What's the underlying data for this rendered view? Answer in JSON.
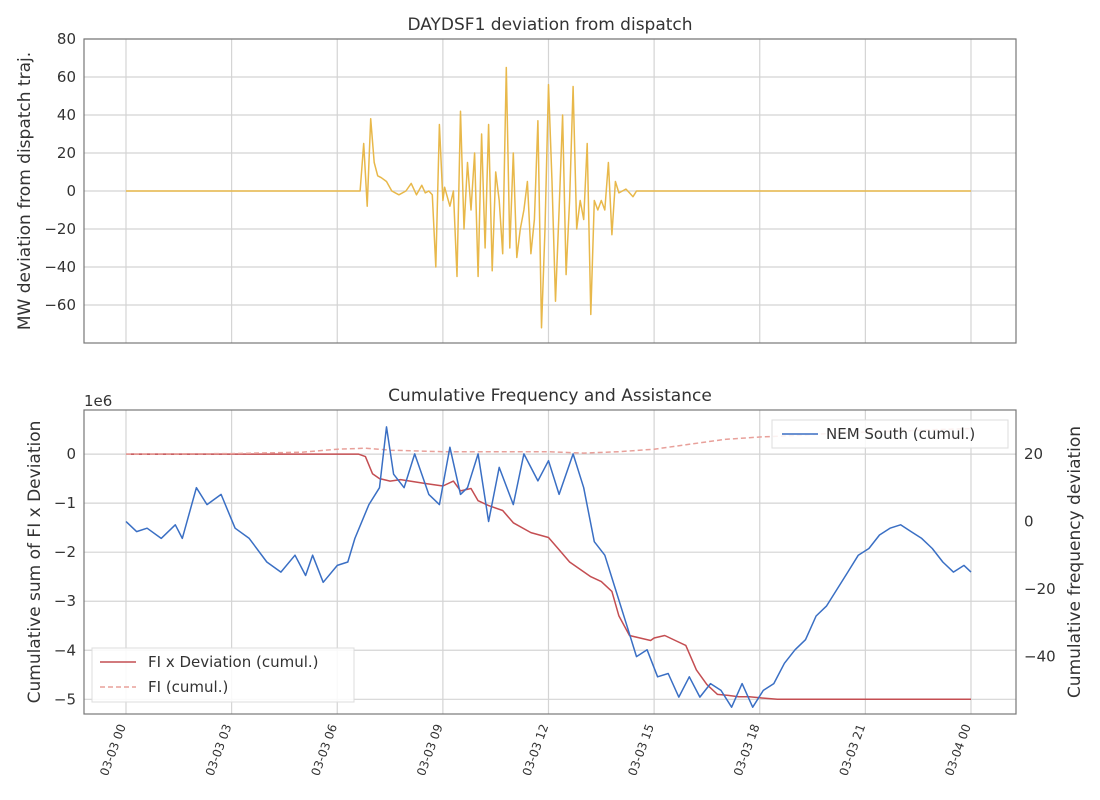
{
  "chart_data": [
    {
      "type": "line",
      "title": "DAYDSF1 deviation from dispatch",
      "ylabel": "MW deviation from dispatch traj.",
      "xlabel": "",
      "x_range_hours": [
        0,
        24
      ],
      "ylim": [
        -80,
        80
      ],
      "yticks": [
        80,
        60,
        40,
        20,
        0,
        -20,
        -40,
        -60
      ],
      "ytick_labels": [
        "80",
        "60",
        "40",
        "20",
        "0",
        "−20",
        "−40",
        "−60"
      ],
      "grid": true,
      "series": [
        {
          "color": "#e8b84a",
          "x": [
            0,
            6.65,
            6.75,
            6.85,
            6.95,
            7.05,
            7.15,
            7.25,
            7.4,
            7.55,
            7.75,
            7.95,
            8.1,
            8.25,
            8.4,
            8.5,
            8.6,
            8.7,
            8.8,
            8.9,
            9.0,
            9.05,
            9.2,
            9.3,
            9.4,
            9.5,
            9.6,
            9.7,
            9.8,
            9.9,
            10.0,
            10.1,
            10.2,
            10.3,
            10.4,
            10.5,
            10.6,
            10.7,
            10.8,
            10.9,
            11.0,
            11.1,
            11.2,
            11.3,
            11.4,
            11.5,
            11.6,
            11.7,
            11.8,
            11.9,
            12.0,
            12.1,
            12.2,
            12.3,
            12.4,
            12.5,
            12.6,
            12.7,
            12.8,
            12.9,
            13.0,
            13.1,
            13.2,
            13.3,
            13.4,
            13.5,
            13.6,
            13.7,
            13.8,
            13.9,
            14.0,
            14.1,
            14.2,
            14.3,
            14.4,
            14.5,
            14.6,
            14.7,
            14.8,
            14.9,
            15.0,
            15.1,
            15.2,
            15.3,
            15.4,
            15.5,
            15.6,
            15.7,
            15.8,
            15.9,
            16.0,
            16.1,
            16.2,
            16.3,
            16.4,
            16.5,
            16.6,
            16.7,
            16.8,
            16.9,
            17.0,
            17.2,
            17.4,
            17.6,
            17.8,
            18.0,
            18.2,
            24.0
          ],
          "y": [
            0,
            0,
            25,
            -8,
            38,
            15,
            8,
            7,
            5,
            0,
            -2,
            0,
            4,
            -2,
            3,
            -1,
            0,
            -2,
            -40,
            35,
            -5,
            2,
            -8,
            0,
            -45,
            42,
            -20,
            15,
            -10,
            20,
            -45,
            30,
            -30,
            35,
            -42,
            10,
            -5,
            -33,
            65,
            -30,
            20,
            -35,
            -20,
            -10,
            5,
            -33,
            -15,
            37,
            -72,
            -20,
            56,
            5,
            -58,
            -10,
            40,
            -44,
            -5,
            55,
            -20,
            -5,
            -15,
            25,
            -65,
            -5,
            -10,
            -5,
            -10,
            15,
            -23,
            5,
            -1,
            0,
            1,
            -1,
            -3,
            0,
            0,
            0,
            0,
            0,
            0,
            0,
            0,
            0,
            0,
            0,
            0,
            0,
            0,
            0,
            0,
            0,
            0,
            0,
            0,
            0,
            0,
            0,
            0,
            0,
            0,
            0,
            0,
            0,
            0,
            0,
            0,
            0
          ]
        }
      ]
    },
    {
      "type": "line",
      "title": "Cumulative Frequency and Assistance",
      "ylabel": "Cumulative sum of FI x Deviation",
      "ylabel_right": "Cumulative frequency deviation",
      "offset_label": "1e6",
      "ylim": [
        -5.3,
        0.9
      ],
      "ylim_right": [
        -57,
        33
      ],
      "yticks": [
        0,
        -1,
        -2,
        -3,
        -4,
        -5
      ],
      "ytick_labels": [
        "0",
        "−1",
        "−2",
        "−3",
        "−4",
        "−5"
      ],
      "yticks_right": [
        20,
        0,
        -20,
        -40
      ],
      "ytick_labels_right": [
        "20",
        "0",
        "−20",
        "−40"
      ],
      "x_range_hours": [
        0,
        24
      ],
      "xtick_labels": [
        "03-03 00",
        "03-03 03",
        "03-03 06",
        "03-03 09",
        "03-03 12",
        "03-03 15",
        "03-03 18",
        "03-03 21",
        "03-04 00"
      ],
      "grid": true,
      "legend_upper_right": [
        "NEM South (cumul.)"
      ],
      "legend_lower_left": [
        "FI x Deviation (cumul.)",
        "FI (cumul.)"
      ],
      "series": [
        {
          "name": "FI x Deviation (cumul.)",
          "axis": "left",
          "color": "#c44e52",
          "style": "solid",
          "x": [
            0,
            6.6,
            6.8,
            7.0,
            7.2,
            7.5,
            7.8,
            8.5,
            9.0,
            9.3,
            9.5,
            9.8,
            10.0,
            10.3,
            10.7,
            11.0,
            11.5,
            12.0,
            12.3,
            12.6,
            12.9,
            13.2,
            13.5,
            13.8,
            14.0,
            14.3,
            14.6,
            14.9,
            15.0,
            15.3,
            15.6,
            15.9,
            16.2,
            16.5,
            16.8,
            17.1,
            17.4,
            17.7,
            18.0,
            18.5,
            20.0,
            22.0,
            24.0
          ],
          "y": [
            0,
            0,
            -0.05,
            -0.4,
            -0.5,
            -0.55,
            -0.52,
            -0.6,
            -0.65,
            -0.55,
            -0.75,
            -0.7,
            -0.95,
            -1.05,
            -1.15,
            -1.4,
            -1.6,
            -1.7,
            -1.95,
            -2.2,
            -2.35,
            -2.5,
            -2.6,
            -2.8,
            -3.3,
            -3.7,
            -3.75,
            -3.8,
            -3.75,
            -3.7,
            -3.8,
            -3.9,
            -4.4,
            -4.7,
            -4.9,
            -4.92,
            -4.95,
            -4.95,
            -4.97,
            -5.0,
            -5.0,
            -5.0,
            -5.0
          ]
        },
        {
          "name": "FI (cumul.)",
          "axis": "left",
          "color": "#e8a09a",
          "style": "dashed",
          "x": [
            0,
            3,
            5,
            6,
            6.8,
            7.5,
            9,
            10,
            12,
            13,
            14,
            15,
            16,
            17,
            18,
            19,
            20,
            21,
            22,
            23,
            24
          ],
          "y": [
            0,
            0.01,
            0.04,
            0.1,
            0.12,
            0.08,
            0.05,
            0.05,
            0.05,
            0.02,
            0.05,
            0.1,
            0.2,
            0.3,
            0.35,
            0.38,
            0.42,
            0.45,
            0.47,
            0.5,
            0.52
          ]
        },
        {
          "name": "NEM South (cumul.)",
          "axis": "right",
          "color": "#3a6fc4",
          "style": "solid",
          "x": [
            0,
            0.3,
            0.6,
            1.0,
            1.4,
            1.6,
            2.0,
            2.3,
            2.7,
            3.1,
            3.5,
            4.0,
            4.4,
            4.8,
            5.1,
            5.3,
            5.6,
            6.0,
            6.3,
            6.5,
            6.9,
            7.2,
            7.4,
            7.6,
            7.9,
            8.2,
            8.6,
            8.9,
            9.2,
            9.5,
            9.7,
            10.0,
            10.3,
            10.6,
            11.0,
            11.3,
            11.7,
            12.0,
            12.3,
            12.7,
            13.0,
            13.3,
            13.6,
            13.9,
            14.2,
            14.5,
            14.8,
            15.1,
            15.4,
            15.7,
            16.0,
            16.3,
            16.6,
            16.9,
            17.2,
            17.5,
            17.8,
            18.1,
            18.4,
            18.7,
            19.0,
            19.3,
            19.6,
            19.9,
            20.2,
            20.5,
            20.8,
            21.1,
            21.4,
            21.7,
            22.0,
            22.3,
            22.6,
            22.9,
            23.2,
            23.5,
            23.8,
            24.0
          ],
          "y": [
            0,
            -3,
            -2,
            -5,
            -1,
            -5,
            10,
            5,
            8,
            -2,
            -5,
            -12,
            -15,
            -10,
            -16,
            -10,
            -18,
            -13,
            -12,
            -5,
            5,
            10,
            28,
            14,
            10,
            20,
            8,
            5,
            22,
            8,
            10,
            20,
            0,
            16,
            5,
            20,
            12,
            18,
            8,
            20,
            10,
            -6,
            -10,
            -20,
            -30,
            -40,
            -38,
            -46,
            -45,
            -52,
            -46,
            -52,
            -48,
            -50,
            -55,
            -48,
            -55,
            -50,
            -48,
            -42,
            -38,
            -35,
            -28,
            -25,
            -20,
            -15,
            -10,
            -8,
            -4,
            -2,
            -1,
            -3,
            -5,
            -8,
            -12,
            -15,
            -13,
            -15
          ]
        }
      ]
    }
  ]
}
